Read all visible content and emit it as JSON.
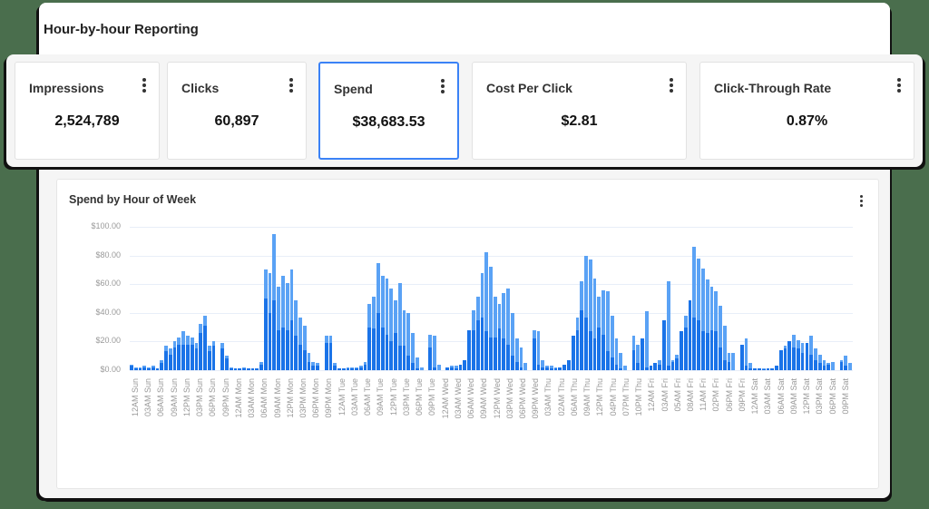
{
  "header": {
    "title": "Hour-by-hour Reporting"
  },
  "kpis": [
    {
      "label": "Impressions",
      "value": "2,524,789",
      "selected": false
    },
    {
      "label": "Clicks",
      "value": "60,897",
      "selected": false
    },
    {
      "label": "Spend",
      "value": "$38,683.53",
      "selected": true
    },
    {
      "label": "Cost Per Click",
      "value": "$2.81",
      "selected": false
    },
    {
      "label": "Click-Through Rate",
      "value": "0.87%",
      "selected": false
    }
  ],
  "colors": {
    "accent": "#3b82f6",
    "bar_light": "#5aa2f5",
    "bar_dark": "#1a73e8",
    "background": "#4a6e4d"
  },
  "chart_data": {
    "type": "bar",
    "stacked": true,
    "title": "Spend by Hour of Week",
    "xlabel": "",
    "ylabel": "",
    "ylim": [
      0,
      100
    ],
    "y_ticks": [
      "$100.00",
      "$80.00",
      "$60.00",
      "$40.00",
      "$20.00",
      "$0.00"
    ],
    "grid": true,
    "x_tick_labels": [
      "12AM Sun",
      "03AM Sun",
      "06AM Sun",
      "09AM Sun",
      "12PM Sun",
      "03PM Sun",
      "06PM Sun",
      "09PM Sun",
      "12AM Mon",
      "03AM Mon",
      "06AM Mon",
      "09AM Mon",
      "12PM Mon",
      "03PM Mon",
      "06PM Mon",
      "09PM Mon",
      "12AM Tue",
      "03AM Tue",
      "06AM Tue",
      "09AM Tue",
      "12PM Tue",
      "03PM Tue",
      "06PM Tue",
      "09PM Tue",
      "12AM Wed",
      "03AM Wed",
      "06AM Wed",
      "09AM Wed",
      "12PM Wed",
      "03PM Wed",
      "06PM Wed",
      "09PM Wed",
      "03AM Thu",
      "02AM Thu",
      "06AM Thu",
      "09AM Thu",
      "12PM Thu",
      "04PM Thu",
      "07PM Thu",
      "10PM Thu",
      "12AM Fri",
      "03AM Fri",
      "05AM Fri",
      "08AM Fri",
      "11AM Fri",
      "02PM Fri",
      "06PM Fri",
      "09PM Fri",
      "12AM Sat",
      "03AM Sat",
      "06AM Sat",
      "09AM Sat",
      "12PM Sat",
      "03PM Sat",
      "06PM Sat",
      "09PM Sat"
    ],
    "series_note": "Each bar = total spend (light) with darker lower segment; null = missing hour",
    "totals": [
      4,
      2,
      2,
      3,
      2,
      3,
      1,
      7,
      17,
      15,
      20,
      23,
      27,
      24,
      23,
      19,
      32,
      38,
      17,
      20,
      null,
      19,
      10,
      2,
      1,
      1,
      2,
      1,
      1,
      1,
      6,
      70,
      68,
      95,
      58,
      66,
      61,
      70,
      49,
      37,
      31,
      12,
      6,
      5,
      null,
      24,
      24,
      5,
      1,
      1,
      2,
      2,
      2,
      3,
      6,
      46,
      51,
      75,
      66,
      64,
      57,
      49,
      61,
      42,
      40,
      26,
      9,
      2,
      null,
      25,
      24,
      4,
      null,
      2,
      3,
      3,
      2,
      6,
      10,
      42,
      51,
      68,
      82,
      72,
      51,
      46,
      54,
      57,
      40,
      22,
      16,
      5,
      null,
      28,
      27,
      7,
      3,
      3,
      2,
      2,
      4,
      7,
      13,
      37,
      62,
      80,
      77,
      64,
      51,
      56,
      55,
      38,
      22,
      12,
      3,
      null,
      24,
      18,
      7,
      41,
      3,
      5,
      7,
      6,
      62,
      7,
      11,
      14,
      38,
      48,
      86,
      78,
      71,
      63,
      58,
      55,
      45,
      31,
      12,
      12,
      null,
      18,
      22,
      5,
      1,
      1,
      1,
      0.5,
      1,
      1,
      5,
      17,
      19,
      25,
      21,
      19,
      16,
      24,
      15,
      11,
      7,
      5,
      6,
      null,
      7,
      10,
      5
    ],
    "dark": [
      3,
      1,
      1,
      2,
      1,
      2,
      1,
      5,
      13,
      11,
      16,
      18,
      18,
      18,
      18,
      15,
      26,
      31,
      13,
      17,
      null,
      15,
      8,
      1,
      1,
      1,
      1,
      1,
      1,
      1,
      4,
      50,
      40,
      49,
      28,
      30,
      28,
      35,
      24,
      18,
      14,
      6,
      3,
      3,
      null,
      19,
      19,
      3,
      1,
      1,
      1,
      1,
      1,
      2,
      4,
      30,
      29,
      40,
      30,
      25,
      20,
      26,
      17,
      17,
      10,
      5,
      1,
      null,
      17,
      16,
      2,
      null,
      1,
      2,
      2,
      1,
      4,
      7,
      28,
      28,
      35,
      37,
      27,
      23,
      23,
      29,
      22,
      18,
      10,
      6,
      2,
      null,
      21,
      22,
      4,
      2,
      2,
      1,
      1,
      2,
      4,
      7,
      24,
      28,
      42,
      37,
      27,
      22,
      30,
      25,
      13,
      9,
      4,
      1,
      null,
      19,
      14,
      5,
      22,
      2,
      3,
      5,
      4,
      35,
      3,
      6,
      8,
      27,
      30,
      49,
      37,
      35,
      27,
      26,
      28,
      27,
      16,
      7,
      6,
      null,
      13,
      18,
      3,
      1,
      1,
      1,
      0.5,
      1,
      1,
      3,
      14,
      15,
      20,
      16,
      15,
      12,
      19,
      11,
      7,
      5,
      3,
      4,
      null,
      5,
      6,
      3
    ]
  },
  "chart_card": {
    "title": "Spend by Hour of Week"
  }
}
